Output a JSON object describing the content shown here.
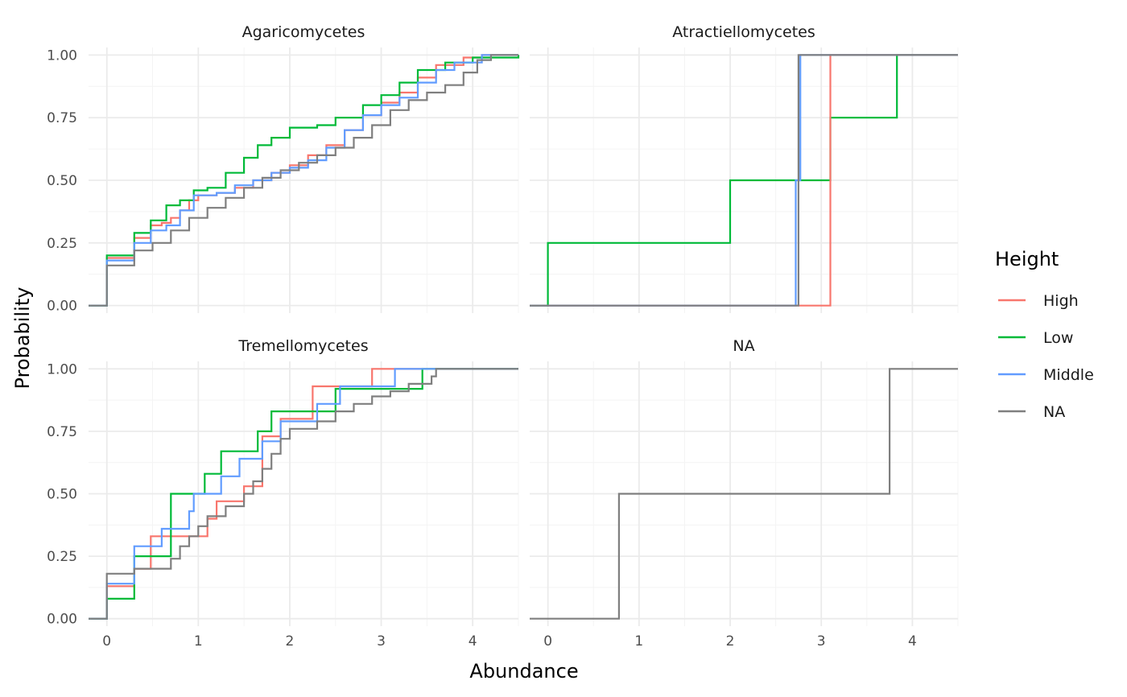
{
  "chart_data": {
    "type": "line",
    "subtype": "ecdf-step",
    "xlabel": "Abundance",
    "ylabel": "Probability",
    "xlim": [
      -0.2,
      4.5
    ],
    "ylim": [
      -0.03,
      1.03
    ],
    "x_ticks": [
      0,
      1,
      2,
      3,
      4
    ],
    "y_ticks": [
      0.0,
      0.25,
      0.5,
      0.75,
      1.0
    ],
    "y_tick_labels": [
      "0.00",
      "0.25",
      "0.50",
      "0.75",
      "1.00"
    ],
    "legend": {
      "title": "Height",
      "placement": "right",
      "entries": [
        {
          "name": "High",
          "color": "#F8766D"
        },
        {
          "name": "Low",
          "color": "#00BA38"
        },
        {
          "name": "Middle",
          "color": "#619CFF"
        },
        {
          "name": "NA",
          "color": "#7F7F7F"
        }
      ]
    },
    "panels": [
      {
        "title": "Agaricomycetes",
        "series": [
          {
            "name": "High",
            "points": [
              [
                -0.2,
                0
              ],
              [
                0,
                0
              ],
              [
                0,
                0.19
              ],
              [
                0.3,
                0.19
              ],
              [
                0.3,
                0.27
              ],
              [
                0.48,
                0.27
              ],
              [
                0.48,
                0.32
              ],
              [
                0.6,
                0.33
              ],
              [
                0.7,
                0.35
              ],
              [
                0.8,
                0.38
              ],
              [
                0.9,
                0.42
              ],
              [
                1.0,
                0.44
              ],
              [
                1.2,
                0.45
              ],
              [
                1.4,
                0.47
              ],
              [
                1.6,
                0.5
              ],
              [
                1.8,
                0.53
              ],
              [
                2.0,
                0.56
              ],
              [
                2.2,
                0.6
              ],
              [
                2.4,
                0.64
              ],
              [
                2.6,
                0.7
              ],
              [
                2.8,
                0.76
              ],
              [
                3.0,
                0.81
              ],
              [
                3.2,
                0.85
              ],
              [
                3.4,
                0.91
              ],
              [
                3.6,
                0.96
              ],
              [
                3.9,
                0.99
              ],
              [
                4.1,
                1.0
              ],
              [
                4.5,
                1.0
              ]
            ]
          },
          {
            "name": "Low",
            "points": [
              [
                -0.2,
                0
              ],
              [
                0,
                0
              ],
              [
                0,
                0.2
              ],
              [
                0.3,
                0.2
              ],
              [
                0.3,
                0.29
              ],
              [
                0.48,
                0.29
              ],
              [
                0.48,
                0.34
              ],
              [
                0.65,
                0.4
              ],
              [
                0.8,
                0.42
              ],
              [
                0.95,
                0.46
              ],
              [
                1.1,
                0.47
              ],
              [
                1.3,
                0.53
              ],
              [
                1.5,
                0.59
              ],
              [
                1.65,
                0.64
              ],
              [
                1.8,
                0.67
              ],
              [
                2.0,
                0.71
              ],
              [
                2.3,
                0.72
              ],
              [
                2.5,
                0.75
              ],
              [
                2.8,
                0.8
              ],
              [
                3.0,
                0.84
              ],
              [
                3.2,
                0.89
              ],
              [
                3.4,
                0.94
              ],
              [
                3.7,
                0.97
              ],
              [
                4.0,
                0.99
              ],
              [
                4.5,
                1.0
              ]
            ]
          },
          {
            "name": "Middle",
            "points": [
              [
                -0.2,
                0
              ],
              [
                0,
                0
              ],
              [
                0,
                0.18
              ],
              [
                0.3,
                0.18
              ],
              [
                0.3,
                0.25
              ],
              [
                0.48,
                0.25
              ],
              [
                0.48,
                0.3
              ],
              [
                0.65,
                0.32
              ],
              [
                0.8,
                0.38
              ],
              [
                0.95,
                0.44
              ],
              [
                1.2,
                0.45
              ],
              [
                1.4,
                0.48
              ],
              [
                1.6,
                0.5
              ],
              [
                1.8,
                0.53
              ],
              [
                2.0,
                0.55
              ],
              [
                2.2,
                0.58
              ],
              [
                2.4,
                0.63
              ],
              [
                2.6,
                0.7
              ],
              [
                2.8,
                0.76
              ],
              [
                3.0,
                0.8
              ],
              [
                3.2,
                0.83
              ],
              [
                3.4,
                0.89
              ],
              [
                3.6,
                0.94
              ],
              [
                3.8,
                0.97
              ],
              [
                4.1,
                1.0
              ],
              [
                4.5,
                1.0
              ]
            ]
          },
          {
            "name": "NA",
            "points": [
              [
                -0.2,
                0
              ],
              [
                0,
                0
              ],
              [
                0,
                0.16
              ],
              [
                0.3,
                0.16
              ],
              [
                0.3,
                0.22
              ],
              [
                0.5,
                0.22
              ],
              [
                0.5,
                0.25
              ],
              [
                0.7,
                0.3
              ],
              [
                0.9,
                0.35
              ],
              [
                1.1,
                0.39
              ],
              [
                1.3,
                0.43
              ],
              [
                1.5,
                0.47
              ],
              [
                1.7,
                0.51
              ],
              [
                1.9,
                0.54
              ],
              [
                2.1,
                0.57
              ],
              [
                2.3,
                0.6
              ],
              [
                2.5,
                0.63
              ],
              [
                2.7,
                0.67
              ],
              [
                2.9,
                0.72
              ],
              [
                3.1,
                0.78
              ],
              [
                3.3,
                0.82
              ],
              [
                3.5,
                0.85
              ],
              [
                3.7,
                0.88
              ],
              [
                3.9,
                0.93
              ],
              [
                4.05,
                0.98
              ],
              [
                4.2,
                1.0
              ],
              [
                4.5,
                1.0
              ]
            ]
          }
        ]
      },
      {
        "title": "Atractiellomycetes",
        "series": [
          {
            "name": "Low",
            "points": [
              [
                -0.2,
                0
              ],
              [
                0,
                0
              ],
              [
                0,
                0.25
              ],
              [
                2.0,
                0.25
              ],
              [
                2.0,
                0.5
              ],
              [
                3.1,
                0.5
              ],
              [
                3.1,
                0.75
              ],
              [
                3.83,
                0.75
              ],
              [
                3.83,
                1.0
              ],
              [
                4.5,
                1.0
              ]
            ]
          },
          {
            "name": "High",
            "points": [
              [
                -0.2,
                0
              ],
              [
                3.1,
                0
              ],
              [
                3.1,
                1.0
              ],
              [
                4.5,
                1.0
              ]
            ]
          },
          {
            "name": "Middle",
            "points": [
              [
                -0.2,
                0
              ],
              [
                2.72,
                0
              ],
              [
                2.72,
                0.5
              ],
              [
                2.77,
                0.5
              ],
              [
                2.77,
                1.0
              ],
              [
                4.5,
                1.0
              ]
            ]
          },
          {
            "name": "NA",
            "points": [
              [
                -0.2,
                0
              ],
              [
                2.75,
                0
              ],
              [
                2.75,
                1.0
              ],
              [
                4.5,
                1.0
              ]
            ]
          }
        ]
      },
      {
        "title": "Tremellomycetes",
        "series": [
          {
            "name": "High",
            "points": [
              [
                -0.2,
                0
              ],
              [
                0,
                0
              ],
              [
                0,
                0.13
              ],
              [
                0.3,
                0.13
              ],
              [
                0.3,
                0.2
              ],
              [
                0.48,
                0.2
              ],
              [
                0.48,
                0.33
              ],
              [
                1.1,
                0.33
              ],
              [
                1.1,
                0.4
              ],
              [
                1.2,
                0.47
              ],
              [
                1.5,
                0.47
              ],
              [
                1.5,
                0.53
              ],
              [
                1.7,
                0.53
              ],
              [
                1.7,
                0.73
              ],
              [
                1.9,
                0.73
              ],
              [
                1.9,
                0.8
              ],
              [
                2.25,
                0.8
              ],
              [
                2.25,
                0.93
              ],
              [
                2.9,
                0.93
              ],
              [
                2.9,
                1.0
              ],
              [
                4.5,
                1.0
              ]
            ]
          },
          {
            "name": "Low",
            "points": [
              [
                -0.2,
                0
              ],
              [
                0,
                0
              ],
              [
                0,
                0.08
              ],
              [
                0.3,
                0.08
              ],
              [
                0.3,
                0.25
              ],
              [
                0.7,
                0.25
              ],
              [
                0.7,
                0.5
              ],
              [
                1.07,
                0.5
              ],
              [
                1.07,
                0.58
              ],
              [
                1.25,
                0.58
              ],
              [
                1.25,
                0.67
              ],
              [
                1.65,
                0.67
              ],
              [
                1.65,
                0.75
              ],
              [
                1.8,
                0.75
              ],
              [
                1.8,
                0.83
              ],
              [
                2.5,
                0.83
              ],
              [
                2.5,
                0.92
              ],
              [
                3.45,
                0.92
              ],
              [
                3.45,
                1.0
              ],
              [
                4.5,
                1.0
              ]
            ]
          },
          {
            "name": "Middle",
            "points": [
              [
                -0.2,
                0
              ],
              [
                0,
                0
              ],
              [
                0,
                0.14
              ],
              [
                0.3,
                0.14
              ],
              [
                0.3,
                0.29
              ],
              [
                0.6,
                0.29
              ],
              [
                0.6,
                0.36
              ],
              [
                0.9,
                0.36
              ],
              [
                0.9,
                0.43
              ],
              [
                0.95,
                0.43
              ],
              [
                0.95,
                0.5
              ],
              [
                1.25,
                0.5
              ],
              [
                1.25,
                0.57
              ],
              [
                1.45,
                0.57
              ],
              [
                1.45,
                0.64
              ],
              [
                1.7,
                0.64
              ],
              [
                1.7,
                0.71
              ],
              [
                1.9,
                0.71
              ],
              [
                1.9,
                0.79
              ],
              [
                2.3,
                0.79
              ],
              [
                2.3,
                0.86
              ],
              [
                2.55,
                0.86
              ],
              [
                2.55,
                0.93
              ],
              [
                3.15,
                0.93
              ],
              [
                3.15,
                1.0
              ],
              [
                4.5,
                1.0
              ]
            ]
          },
          {
            "name": "NA",
            "points": [
              [
                -0.2,
                0
              ],
              [
                0,
                0
              ],
              [
                0,
                0.18
              ],
              [
                0.3,
                0.18
              ],
              [
                0.3,
                0.2
              ],
              [
                0.7,
                0.2
              ],
              [
                0.7,
                0.24
              ],
              [
                0.8,
                0.29
              ],
              [
                0.9,
                0.33
              ],
              [
                1.0,
                0.37
              ],
              [
                1.1,
                0.41
              ],
              [
                1.3,
                0.45
              ],
              [
                1.5,
                0.5
              ],
              [
                1.6,
                0.55
              ],
              [
                1.7,
                0.6
              ],
              [
                1.8,
                0.66
              ],
              [
                1.9,
                0.72
              ],
              [
                2.0,
                0.76
              ],
              [
                2.3,
                0.79
              ],
              [
                2.5,
                0.83
              ],
              [
                2.7,
                0.86
              ],
              [
                2.9,
                0.89
              ],
              [
                3.1,
                0.91
              ],
              [
                3.3,
                0.94
              ],
              [
                3.55,
                0.97
              ],
              [
                3.6,
                1.0
              ],
              [
                4.5,
                1.0
              ]
            ]
          }
        ]
      },
      {
        "title": "NA",
        "series": [
          {
            "name": "NA",
            "points": [
              [
                -0.2,
                0
              ],
              [
                0.78,
                0
              ],
              [
                0.78,
                0.5
              ],
              [
                3.75,
                0.5
              ],
              [
                3.75,
                1.0
              ],
              [
                4.5,
                1.0
              ]
            ]
          }
        ]
      }
    ]
  }
}
